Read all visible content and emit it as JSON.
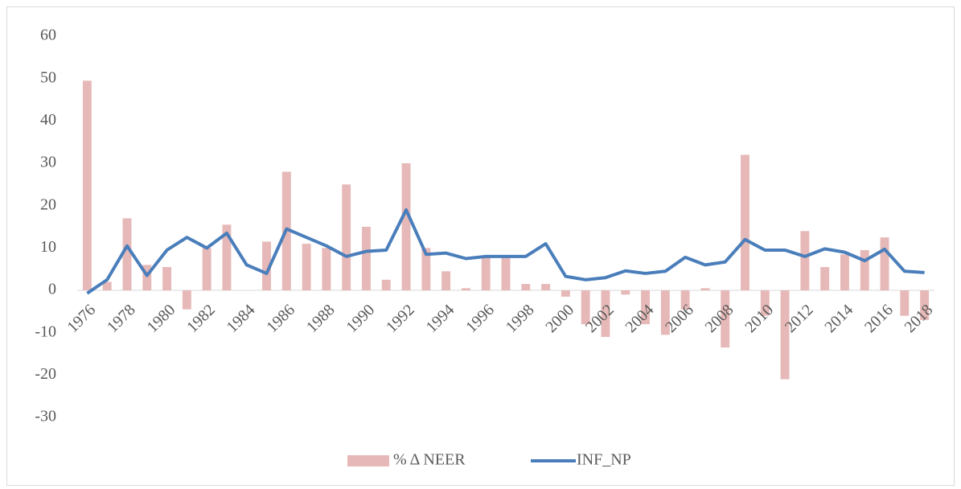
{
  "chart_data": {
    "type": "bar_line",
    "categories": [
      "1976",
      null,
      "1978",
      null,
      "1980",
      null,
      "1982",
      null,
      "1984",
      null,
      "1986",
      null,
      "1988",
      null,
      "1990",
      null,
      "1992",
      null,
      "1994",
      null,
      "1996",
      null,
      "1998",
      null,
      "2000",
      null,
      "2002",
      null,
      "2004",
      null,
      "2006",
      null,
      "2008",
      null,
      "2010",
      null,
      "2012",
      null,
      "2014",
      null,
      "2016",
      null,
      "2018"
    ],
    "series": [
      {
        "name": "% Δ NEER",
        "type": "bar",
        "color": "#e6b9b8",
        "values": [
          49.5,
          2,
          17,
          6,
          5.5,
          -4.5,
          10,
          15.5,
          0,
          11.5,
          28,
          11,
          10,
          25,
          15,
          2.5,
          30,
          10,
          4.5,
          0.5,
          8,
          8,
          1.5,
          1.5,
          -1.5,
          -8,
          -11,
          -1,
          -8,
          -10.5,
          -4.5,
          0.5,
          -13.5,
          32,
          -6,
          -21,
          14,
          5.5,
          8.5,
          9.5,
          12.5,
          -6,
          -7
        ]
      },
      {
        "name": "INF_NP",
        "type": "line",
        "color": "#4a7ebb",
        "values": [
          -0.7,
          2.5,
          10.5,
          3.5,
          9.5,
          12.5,
          10,
          13.5,
          6,
          4,
          14.5,
          12.5,
          10.5,
          8,
          9.2,
          9.5,
          19,
          8.5,
          8.8,
          7.5,
          8,
          8,
          8,
          11,
          3.3,
          2.5,
          3,
          4.6,
          4,
          4.5,
          7.8,
          6,
          6.7,
          12,
          9.5,
          9.5,
          8,
          9.8,
          9,
          7,
          9.7,
          4.5,
          4.2
        ]
      }
    ],
    "ylim": [
      -30,
      60
    ],
    "yticks": [
      -30,
      -20,
      -10,
      0,
      10,
      20,
      30,
      40,
      50,
      60
    ],
    "grid": false,
    "legend": "bottom"
  }
}
